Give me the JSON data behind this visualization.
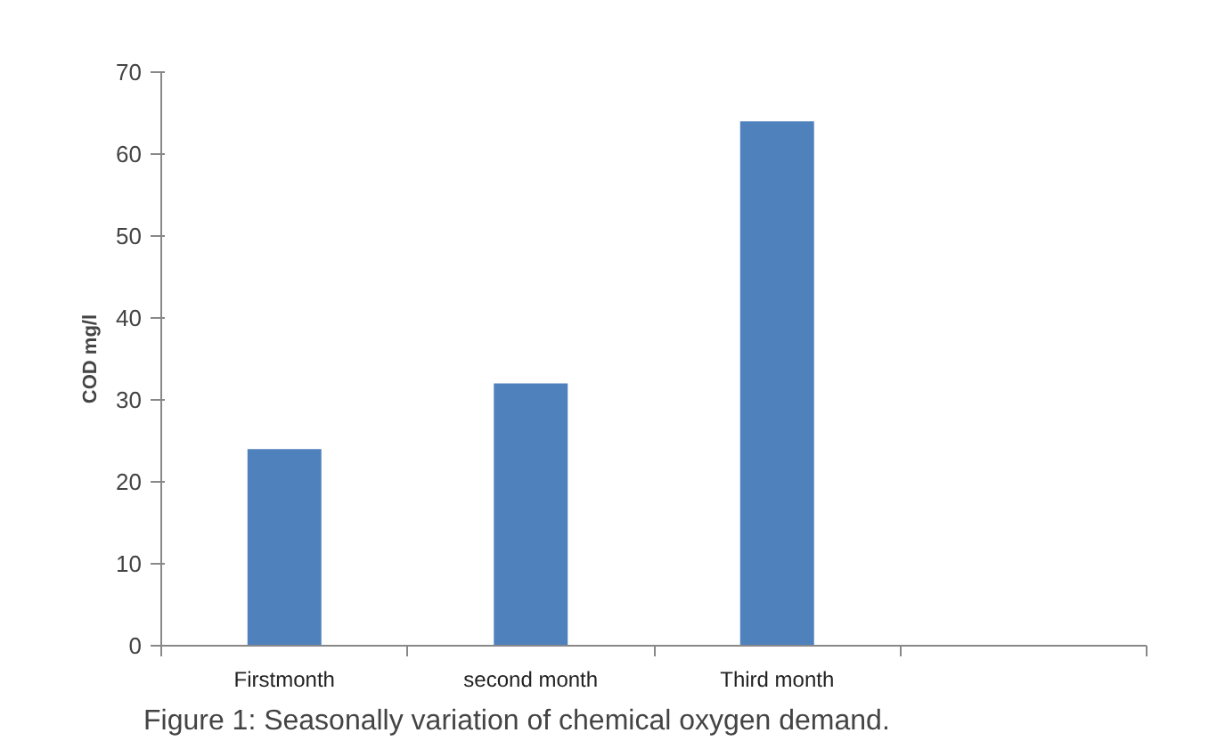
{
  "chart_data": {
    "type": "bar",
    "ylabel": "COD mg/l",
    "categories": [
      "Firstmonth",
      "second month",
      "Third month",
      null
    ],
    "values": [
      24,
      32,
      64,
      null
    ],
    "color": "#4f81bd",
    "ylim": [
      0,
      70
    ],
    "yticks": [
      0,
      10,
      20,
      30,
      40,
      50,
      60,
      70
    ],
    "grid": false,
    "annotations": [
      "Figure 1: Seasonally variation of chemical oxygen demand."
    ]
  }
}
